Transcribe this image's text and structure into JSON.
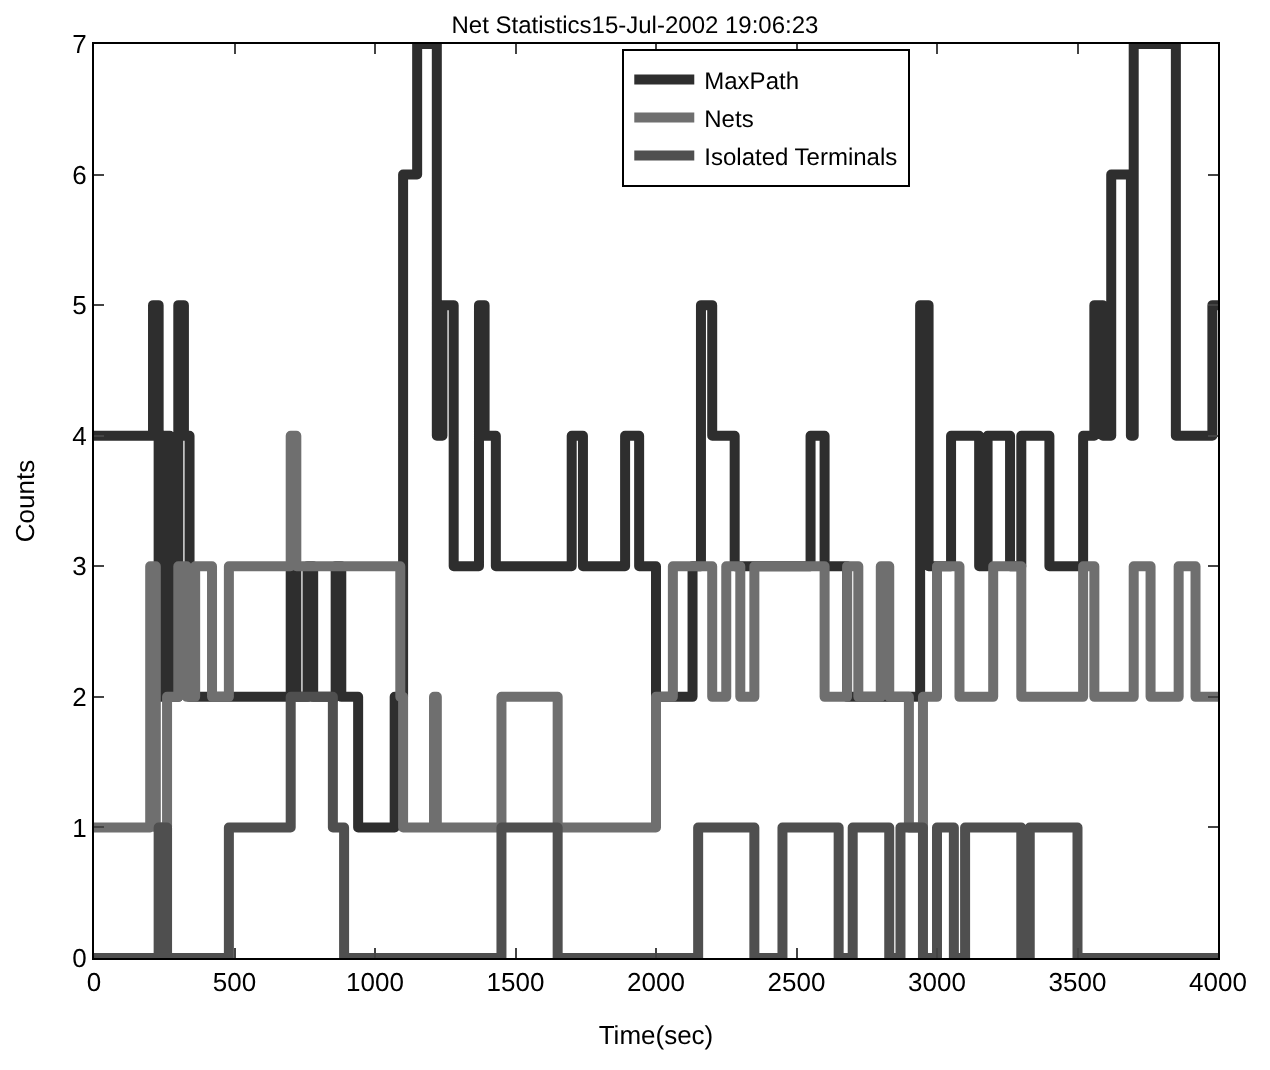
{
  "chart_data": {
    "type": "step",
    "title": "Net Statistics15-Jul-2002 19:06:23",
    "xlabel": "Time(sec)",
    "ylabel": "Counts",
    "xlim": [
      0,
      4000
    ],
    "xticks": [
      0,
      500,
      1000,
      1500,
      2000,
      2500,
      3000,
      3500,
      4000
    ],
    "ylim": [
      0,
      7
    ],
    "yticks": [
      0,
      1,
      2,
      3,
      4,
      5,
      6,
      7
    ],
    "grid": false,
    "legend": "top",
    "marker": "none",
    "line_style": "solid",
    "series": [
      {
        "name": "MaxPath",
        "color": "#2e2e2e",
        "x": [
          0,
          210,
          230,
          250,
          270,
          300,
          320,
          340,
          360,
          700,
          720,
          760,
          780,
          860,
          880,
          940,
          1040,
          1070,
          1100,
          1150,
          1220,
          1240,
          1280,
          1300,
          1370,
          1390,
          1430,
          1700,
          1740,
          1800,
          1890,
          1940,
          2000,
          2130,
          2160,
          2200,
          2280,
          2350,
          2550,
          2600,
          2680,
          2940,
          2970,
          3050,
          3150,
          3180,
          3260,
          3300,
          3400,
          3520,
          3560,
          3590,
          3620,
          3690,
          3700,
          3800,
          3850,
          3900,
          3980,
          4000
        ],
        "values": [
          4,
          5,
          2,
          4,
          2,
          5,
          4,
          2,
          2,
          3,
          2,
          3,
          2,
          3,
          2,
          1,
          1,
          2,
          6,
          7,
          4,
          5,
          3,
          3,
          5,
          4,
          3,
          4,
          3,
          3,
          4,
          3,
          2,
          3,
          5,
          4,
          3,
          3,
          4,
          3,
          2,
          5,
          3,
          4,
          3,
          4,
          3,
          4,
          3,
          4,
          5,
          4,
          6,
          4,
          7,
          7,
          4,
          4,
          5,
          5
        ]
      },
      {
        "name": "Nets",
        "color": "#6f6f6f",
        "x": [
          0,
          200,
          220,
          260,
          300,
          330,
          360,
          420,
          480,
          680,
          700,
          720,
          1090,
          1100,
          1200,
          1210,
          1220,
          1450,
          1650,
          2000,
          2060,
          2200,
          2250,
          2300,
          2350,
          2470,
          2600,
          2680,
          2720,
          2800,
          2830,
          2900,
          2950,
          3000,
          3080,
          3200,
          3300,
          3400,
          3520,
          3560,
          3620,
          3700,
          3760,
          3860,
          3920,
          4000
        ],
        "values": [
          1,
          3,
          1,
          2,
          3,
          2,
          3,
          2,
          3,
          3,
          4,
          3,
          2,
          1,
          1,
          2,
          1,
          2,
          1,
          2,
          3,
          2,
          3,
          2,
          3,
          3,
          2,
          3,
          2,
          3,
          2,
          1,
          2,
          3,
          2,
          3,
          2,
          2,
          3,
          2,
          2,
          3,
          2,
          3,
          2,
          2
        ]
      },
      {
        "name": "Isolated Terminals",
        "color": "#4f4f4f",
        "x": [
          0,
          230,
          260,
          480,
          700,
          850,
          890,
          1450,
          1650,
          2150,
          2350,
          2450,
          2650,
          2700,
          2830,
          2870,
          2950,
          3000,
          3060,
          3100,
          3300,
          3330,
          3500,
          4000
        ],
        "values": [
          0,
          1,
          0,
          1,
          2,
          1,
          0,
          1,
          0,
          1,
          0,
          1,
          0,
          1,
          0,
          1,
          0,
          1,
          0,
          1,
          0,
          1,
          0,
          0
        ]
      }
    ]
  }
}
